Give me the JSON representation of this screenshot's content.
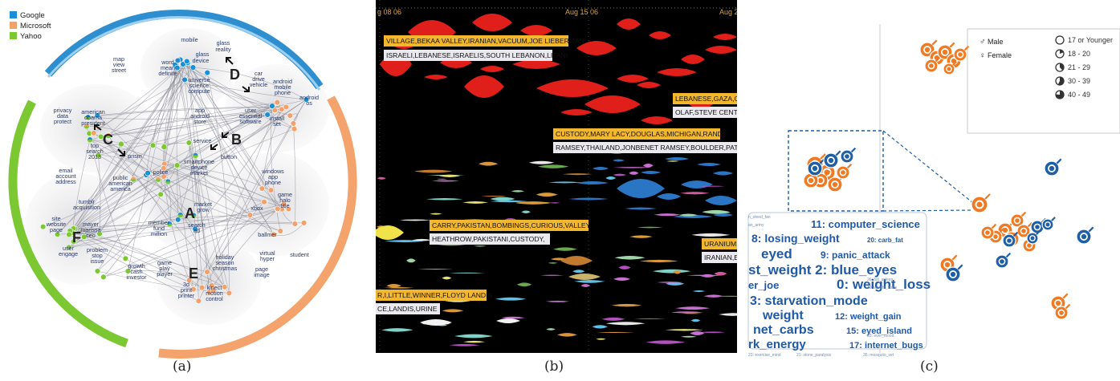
{
  "colors": {
    "google": "#1a8fd6",
    "microsoft": "#f4a06a",
    "yahoo": "#7cc832",
    "male": "#1f5fa6",
    "female": "#f07a24"
  },
  "panel_a": {
    "caption": "(a)",
    "legend": [
      {
        "label": "Google",
        "color": "#1a8fd6"
      },
      {
        "label": "Microsoft",
        "color": "#f4a06a"
      },
      {
        "label": "Yahoo",
        "color": "#7cc832"
      }
    ],
    "markers": [
      "A",
      "B",
      "C",
      "D",
      "E",
      "F"
    ],
    "labels": [
      "mobile",
      "glass",
      "reality",
      "glass",
      "device",
      "word",
      "mean",
      "definite",
      "universe",
      "science",
      "compute",
      "map",
      "view",
      "street",
      "car",
      "drive",
      "vehicle",
      "android",
      "mobile",
      "phone",
      "android",
      "os",
      "app",
      "android",
      "store",
      "user",
      "essential",
      "software",
      "install",
      "set",
      "privacy",
      "data",
      "protect",
      "american",
      "obama",
      "president",
      "top",
      "search",
      "2013",
      "service",
      "button",
      "smartphone",
      "device",
      "market",
      "prism",
      "police",
      "public",
      "american",
      "america",
      "windows",
      "app",
      "phone",
      "email",
      "account",
      "address",
      "tumblr",
      "acquisition",
      "game",
      "halo",
      "title",
      "xbox",
      "site",
      "website",
      "page",
      "mayer",
      "marissa",
      "ceo",
      "member",
      "fund",
      "million",
      "market",
      "grow",
      "search",
      "ad",
      "ballmer",
      "virtual",
      "hyper",
      "student",
      "user",
      "engage",
      "problem",
      "stop",
      "issue",
      "page",
      "image",
      "growth",
      "cash",
      "investor",
      "game",
      "play",
      "player",
      "holiday",
      "season",
      "christmas",
      "3d",
      "print",
      "printer",
      "kinect",
      "motion",
      "control"
    ]
  },
  "panel_b": {
    "caption": "(b)",
    "date_labels": [
      "g 08 06",
      "Aug 15 06",
      "Aug 2"
    ],
    "tags": [
      {
        "text": "VILLAGE,BEKAA VALLEY,IRANIAN,VACUUM,JOE LIEBERMAN",
        "kind": "y"
      },
      {
        "text": "ISRAELI,LEBANESE,ISRAELIS,SOUTH LEBANON,LITANI",
        "kind": "w"
      },
      {
        "text": "LEBANESE,GAZA,C",
        "kind": "y"
      },
      {
        "text": "OLAF,STEVE CENT",
        "kind": "w"
      },
      {
        "text": "CUSTODY,MARY LACY,DOUGLAS,MICHIGAN,RANDI",
        "kind": "y"
      },
      {
        "text": "RAMSEY,THAILAND,JONBENET RAMSEY,BOULDER,PATSY",
        "kind": "w"
      },
      {
        "text": "CARRY,PAKISTAN,BOMBINGS,CURIOUS,VALLEY",
        "kind": "y"
      },
      {
        "text": "HEATHROW,PAKISTANI,CUSTODY,",
        "kind": "w"
      },
      {
        "text": "URANIUM,",
        "kind": "y"
      },
      {
        "text": "IRANIAN,E",
        "kind": "w"
      },
      {
        "text": "R,I,LITTLE,WINNER,FLOYD LANDIS",
        "kind": "y"
      },
      {
        "text": "CE,LANDIS,URINE",
        "kind": "w"
      }
    ]
  },
  "panel_c": {
    "caption": "(c)",
    "legend_gender": [
      "Male",
      "Female"
    ],
    "legend_age": [
      "17 or Younger",
      "18 - 20",
      "21 - 29",
      "30 - 39",
      "40 - 49"
    ],
    "cloud": [
      {
        "text": "11: computer_science",
        "size": 13
      },
      {
        "text": "8: losing_weight",
        "size": 14
      },
      {
        "text": "20: carb_fat",
        "size": 8
      },
      {
        "text": "eyed",
        "size": 17
      },
      {
        "text": "9: panic_attack",
        "size": 12
      },
      {
        "text": "st_weight 2: blue_eyes",
        "size": 17
      },
      {
        "text": "er_joe",
        "size": 13
      },
      {
        "text": "0: weight_loss",
        "size": 17
      },
      {
        "text": "3: starvation_mode",
        "size": 16
      },
      {
        "text": "weight",
        "size": 16
      },
      {
        "text": "12: weight_gain",
        "size": 11
      },
      {
        "text": "net_carbs",
        "size": 16
      },
      {
        "text": "15: eyed_island",
        "size": 11
      },
      {
        "text": "rk_energy",
        "size": 15
      },
      {
        "text": "17: internet_bugs",
        "size": 11
      }
    ]
  }
}
